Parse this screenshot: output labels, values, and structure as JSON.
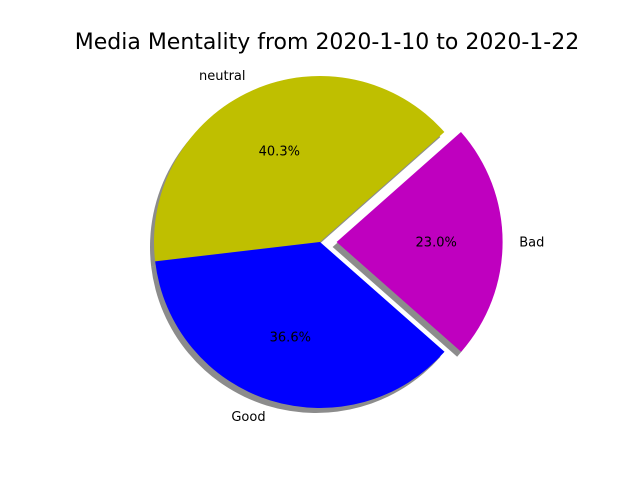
{
  "chart_data": {
    "type": "pie",
    "title": "Media Mentality from 2020-1-10 to 2020-1-22",
    "slices": [
      {
        "label": "Bad",
        "percent_label": "23.0%",
        "value": 23.0,
        "color": "#bf00bf",
        "exploded": true
      },
      {
        "label": "neutral",
        "percent_label": "40.3%",
        "value": 40.3,
        "color": "#bfbf00",
        "exploded": false
      },
      {
        "label": "Good",
        "percent_label": "36.6%",
        "value": 36.6,
        "color": "#0000ff",
        "exploded": false
      }
    ],
    "start_angle_deg": -41.4,
    "counterclockwise": true,
    "shadow": true,
    "legend": "none"
  }
}
